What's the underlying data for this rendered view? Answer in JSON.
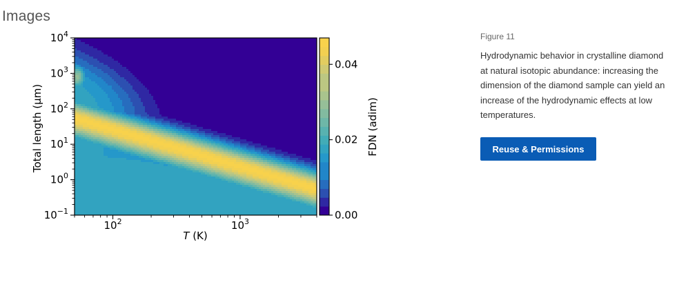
{
  "section": {
    "title": "Images"
  },
  "figure": {
    "label": "Figure 11",
    "caption": "Hydrodynamic behavior in crystalline diamond at natural isotopic abundance: increasing the dimension of the diamond sample can yield an increase of the hydrodynamic effects at low temperatures.",
    "reuse_label": "Reuse & Permissions"
  },
  "chart_data": {
    "type": "heatmap",
    "title": "",
    "xlabel": "T (K)",
    "ylabel": "Total length (μm)",
    "x_scale": "log",
    "y_scale": "log",
    "xlim": [
      50,
      4000
    ],
    "ylim": [
      0.1,
      10000
    ],
    "x_ticks": [
      {
        "value": 100,
        "base": "10",
        "exp": "2"
      },
      {
        "value": 1000,
        "base": "10",
        "exp": "3"
      }
    ],
    "y_ticks": [
      {
        "value": 10000,
        "base": "10",
        "exp": "4"
      },
      {
        "value": 1000,
        "base": "10",
        "exp": "3"
      },
      {
        "value": 100,
        "base": "10",
        "exp": "2"
      },
      {
        "value": 10,
        "base": "10",
        "exp": "1"
      },
      {
        "value": 1,
        "base": "10",
        "exp": "0"
      },
      {
        "value": 0.1,
        "base": "10",
        "exp": "−1"
      }
    ],
    "colorbar": {
      "label": "FDN (adim)",
      "range": [
        0,
        0.047
      ],
      "ticks": [
        {
          "value": 0.0,
          "label": "0.00"
        },
        {
          "value": 0.02,
          "label": "0.02"
        },
        {
          "value": 0.04,
          "label": "0.04"
        }
      ],
      "colors": [
        "#330095",
        "#2b5ab5",
        "#1e93cf",
        "#3cabb9",
        "#6eb7a8",
        "#9bc096",
        "#c6c97c",
        "#f0cf52",
        "#ffd448"
      ]
    },
    "field_description": "FDN peaks (~0.045) along a band from about T=200 K at L=10 um down to T=3000 K at L=0.1-1 um; region above the band (high T, large L) is ~0; low-T region ~0.02.",
    "grid": false,
    "legend": "none"
  }
}
